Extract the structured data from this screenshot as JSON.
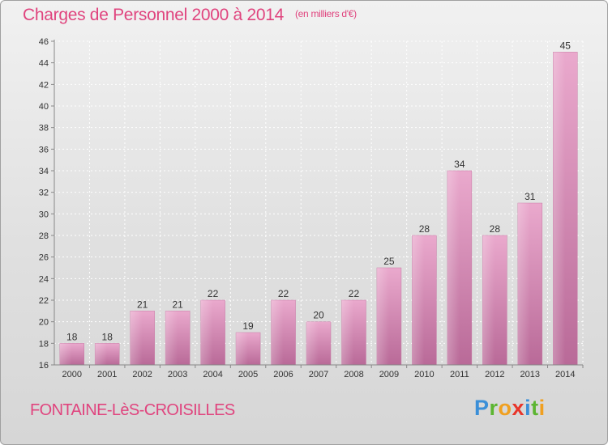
{
  "header": {
    "title": "Charges de Personnel 2000 à 2014",
    "unit": "(en milliers d'€)"
  },
  "commune": "FONTAINE-LèS-CROISILLES",
  "logo": {
    "letters": [
      {
        "ch": "P",
        "color": "#3b8fd8"
      },
      {
        "ch": "r",
        "color": "#5cb531"
      },
      {
        "ch": "o",
        "color": "#f0a020"
      },
      {
        "ch": "x",
        "color": "#e8352a"
      },
      {
        "ch": "i",
        "color": "#3b8fd8"
      },
      {
        "ch": "t",
        "color": "#5cb531"
      },
      {
        "ch": "i",
        "color": "#f0a020"
      }
    ]
  },
  "chart_data": {
    "type": "bar",
    "title": "Charges de Personnel 2000 à 2014",
    "subtitle": "(en milliers d'€)",
    "categories": [
      "2000",
      "2001",
      "2002",
      "2003",
      "2004",
      "2005",
      "2006",
      "2007",
      "2008",
      "2009",
      "2010",
      "2011",
      "2012",
      "2013",
      "2014"
    ],
    "values": [
      18,
      18,
      21,
      21,
      22,
      19,
      22,
      20,
      22,
      25,
      28,
      34,
      28,
      31,
      45
    ],
    "ylim": [
      16,
      46
    ],
    "yticks": [
      16,
      18,
      20,
      22,
      24,
      26,
      28,
      30,
      32,
      34,
      36,
      38,
      40,
      42,
      44,
      46
    ],
    "grid": true,
    "bar_color": "#d77aab",
    "bar_color_light": "#e9a6cb"
  }
}
